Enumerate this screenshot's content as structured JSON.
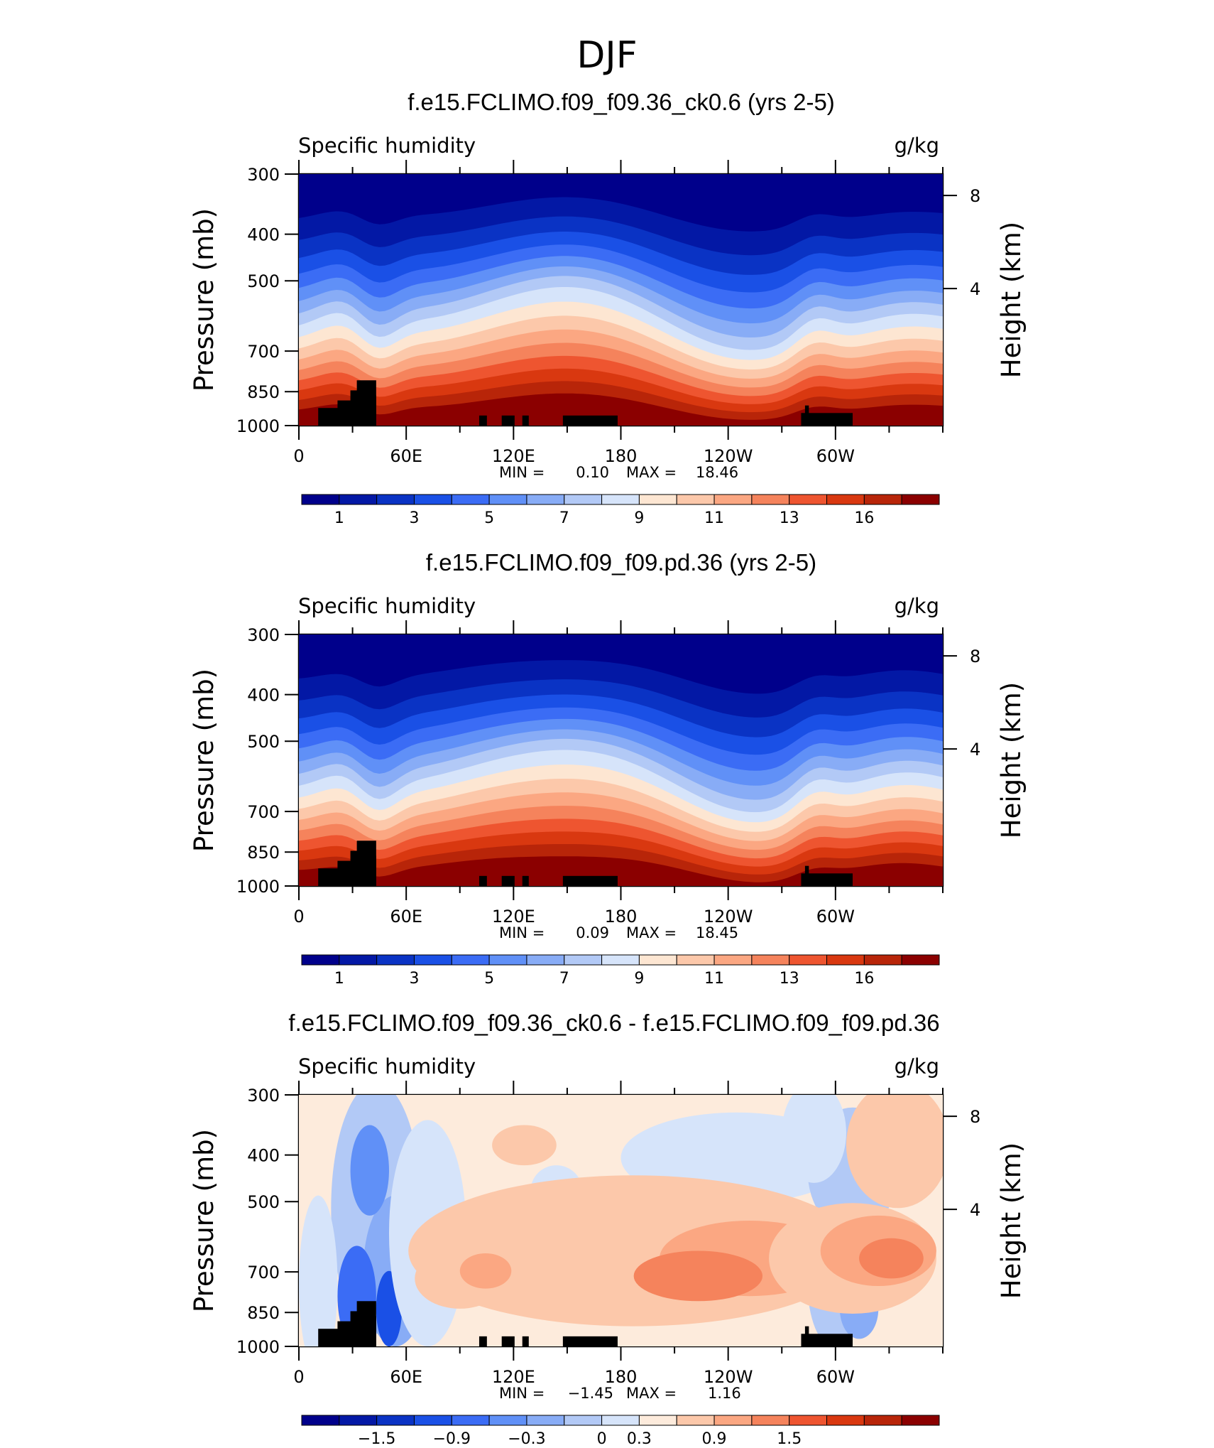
{
  "figure_title": "DJF",
  "colors": {
    "abs_scale": [
      "#00008b",
      "#0318a5",
      "#0a33c4",
      "#1a50e6",
      "#3b6cf5",
      "#6090f7",
      "#88acf6",
      "#b2c9f6",
      "#d6e4fa",
      "#fde6d2",
      "#fcc8aa",
      "#fba782",
      "#f5835c",
      "#ee5530",
      "#d93810",
      "#b82509",
      "#8b0000"
    ],
    "diff_scale": [
      "#00008b",
      "#0318a5",
      "#0a33c4",
      "#1a50e6",
      "#3b6cf5",
      "#6090f7",
      "#88acf6",
      "#b2c9f6",
      "#d6e4fa",
      "#fdebdc",
      "#fcc8aa",
      "#fba782",
      "#f5835c",
      "#ee5530",
      "#d93810",
      "#b82509",
      "#8b0000"
    ]
  },
  "chart_data": [
    {
      "type": "heatmap",
      "title": "f.e15.FCLIMO.f09_f09.36_ck0.6 (yrs 2-5)",
      "left_label": "Specific humidity",
      "right_label": "g/kg",
      "ylabel": "Pressure (mb)",
      "ylabel_right": "Height (km)",
      "x_ticklabels": [
        "0",
        "60E",
        "120E",
        "180",
        "120W",
        "60W"
      ],
      "y_ticklabels": [
        "300",
        "400",
        "500",
        "700",
        "850",
        "1000"
      ],
      "y_right_ticklabels": [
        "8",
        "4"
      ],
      "xlim": [
        0,
        360
      ],
      "ylim": [
        1000,
        300
      ],
      "min_label": "MIN =",
      "min_value": "0.10",
      "max_label": "MAX =",
      "max_value": "18.46",
      "colorbar_labels": [
        "1",
        "3",
        "5",
        "7",
        "9",
        "11",
        "13",
        "16"
      ],
      "colorbar_levels": 17
    },
    {
      "type": "heatmap",
      "title": "f.e15.FCLIMO.f09_f09.pd.36 (yrs 2-5)",
      "left_label": "Specific humidity",
      "right_label": "g/kg",
      "ylabel": "Pressure (mb)",
      "ylabel_right": "Height (km)",
      "x_ticklabels": [
        "0",
        "60E",
        "120E",
        "180",
        "120W",
        "60W"
      ],
      "y_ticklabels": [
        "300",
        "400",
        "500",
        "700",
        "850",
        "1000"
      ],
      "y_right_ticklabels": [
        "8",
        "4"
      ],
      "xlim": [
        0,
        360
      ],
      "ylim": [
        1000,
        300
      ],
      "min_label": "MIN =",
      "min_value": "0.09",
      "max_label": "MAX =",
      "max_value": "18.45",
      "colorbar_labels": [
        "1",
        "3",
        "5",
        "7",
        "9",
        "11",
        "13",
        "16"
      ],
      "colorbar_levels": 17
    },
    {
      "type": "heatmap",
      "title": "f.e15.FCLIMO.f09_f09.36_ck0.6 - f.e15.FCLIMO.f09_f09.pd.36",
      "left_label": "Specific humidity",
      "right_label": "g/kg",
      "ylabel": "Pressure (mb)",
      "ylabel_right": "Height (km)",
      "x_ticklabels": [
        "0",
        "60E",
        "120E",
        "180",
        "120W",
        "60W"
      ],
      "y_ticklabels": [
        "300",
        "400",
        "500",
        "700",
        "850",
        "1000"
      ],
      "y_right_ticklabels": [
        "8",
        "4"
      ],
      "xlim": [
        0,
        360
      ],
      "ylim": [
        1000,
        300
      ],
      "min_label": "MIN =",
      "min_value": "−1.45",
      "max_label": "MAX =",
      "max_value": "1.16",
      "colorbar_labels": [
        "−1.5",
        "−0.9",
        "−0.3",
        "0",
        "0.3",
        "0.9",
        "1.5"
      ],
      "colorbar_levels": 17
    }
  ]
}
